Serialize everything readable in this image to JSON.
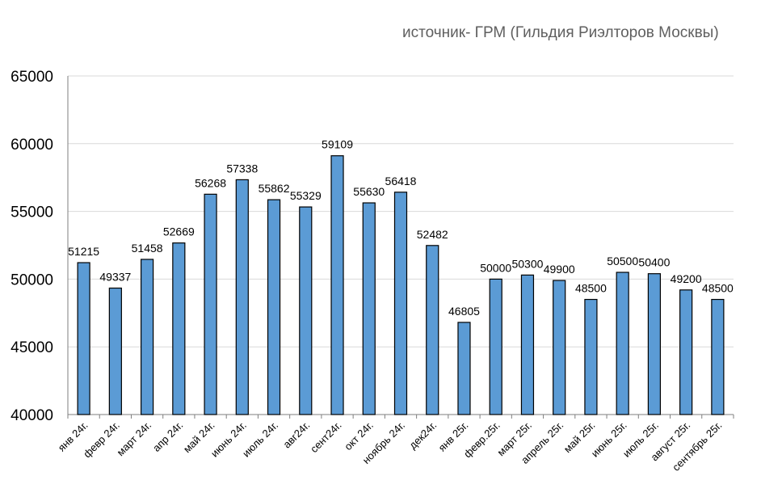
{
  "subtitle": "источник- ГРМ (Гильдия Риэлторов Москвы)",
  "chart_data": {
    "type": "bar",
    "title": "",
    "xlabel": "",
    "ylabel": "",
    "ylim": [
      40000,
      65000
    ],
    "yticks": [
      40000,
      45000,
      50000,
      55000,
      60000,
      65000
    ],
    "grid": true,
    "bar_color": "#5b9bd5",
    "categories": [
      "янв 24г.",
      "февр 24г.",
      "март 24г.",
      "апр 24г.",
      "май 24г.",
      "июнь 24г.",
      "июль 24г.",
      "авг24г.",
      "сент24г.",
      "окт 24г.",
      "ноябрь 24г.",
      "дек24г.",
      "янв 25г.",
      "февр.25г.",
      "март 25г.",
      "апрель 25г.",
      "май 25г.",
      "июнь 25г.",
      "июль 25г.",
      "август 25г.",
      "сентябрь 25г."
    ],
    "values": [
      51215,
      49337,
      51458,
      52669,
      56268,
      57338,
      55862,
      55329,
      59109,
      55630,
      56418,
      52482,
      46805,
      50000,
      50300,
      49900,
      48500,
      50500,
      50400,
      49200,
      48500
    ]
  }
}
